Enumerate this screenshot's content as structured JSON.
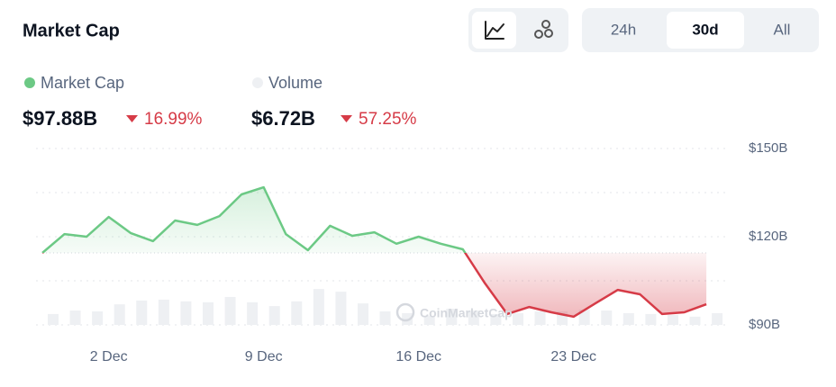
{
  "header": {
    "title": "Market Cap",
    "buttons": [
      "24h",
      "30d",
      "All"
    ],
    "selected": 1
  },
  "stats": [
    {
      "value": "$97.88B",
      "change": "16.99%"
    },
    {
      "value": "$6.72B",
      "change": "57.25%"
    }
  ],
  "chart_data": {
    "type": "line",
    "categories": [
      null,
      null,
      null,
      "2 Dec",
      null,
      null,
      null,
      null,
      null,
      null,
      "9 Dec",
      null,
      null,
      null,
      null,
      null,
      null,
      "16 Dec",
      null,
      null,
      null,
      null,
      null,
      null,
      "23 Dec",
      null,
      null,
      null,
      null,
      null,
      null
    ],
    "series": [
      {
        "name": "Market Cap",
        "color": "#6cc985",
        "down_color": "#d63b47",
        "values": [
          114.5,
          120.9,
          120.0,
          126.7,
          121.2,
          118.5,
          125.5,
          124.0,
          127.0,
          134.4,
          136.8,
          120.9,
          115.4,
          123.7,
          120.3,
          121.5,
          117.6,
          120.0,
          117.6,
          115.7,
          104.1,
          93.7,
          96.1,
          94.3,
          92.8,
          97.4,
          101.9,
          100.4,
          93.7,
          94.3,
          97.0
        ]
      },
      {
        "name": "Volume",
        "color": "#eef0f3",
        "axis": "y2",
        "values": [
          3.7,
          4.9,
          4.6,
          7.0,
          8.3,
          8.6,
          8.0,
          7.7,
          9.5,
          7.7,
          6.4,
          8.0,
          12.2,
          11.3,
          7.3,
          4.6,
          4.0,
          3.1,
          5.5,
          4.9,
          3.7,
          4.0,
          4.6,
          4.6,
          5.2,
          4.9,
          4.0,
          3.7,
          3.4,
          2.8,
          4.0
        ]
      }
    ],
    "ylim": [
      90,
      150
    ],
    "yticks": [
      {
        "value": 90,
        "label": "$90B"
      },
      {
        "value": 120,
        "label": "$120B"
      },
      {
        "value": 150,
        "label": "$150B"
      }
    ],
    "minor_yticks": [
      105,
      135
    ],
    "y2lim": [
      0,
      60
    ],
    "grid": true,
    "watermark": "CoinMarketCap"
  }
}
